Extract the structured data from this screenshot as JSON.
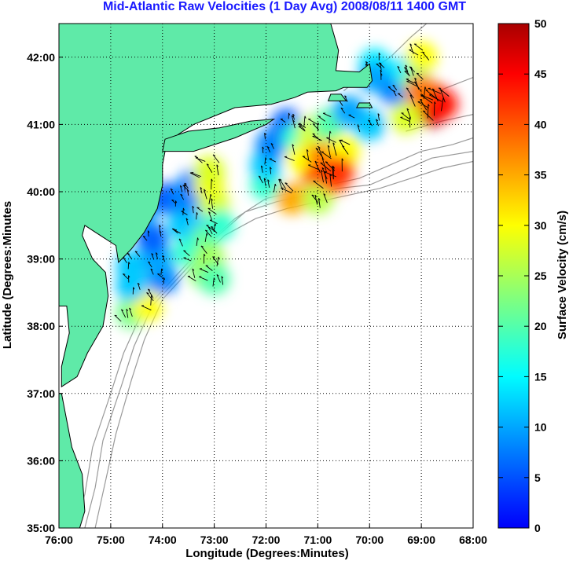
{
  "chart_data": {
    "type": "heatmap",
    "title": "Mid-Atlantic Raw Velocities (1 Day Avg) 2008/08/11 1400 GMT",
    "xlabel": "Longitude (Degrees:Minutes)",
    "ylabel": "Latitude (Degrees:Minutes",
    "xlim": [
      -76,
      -68
    ],
    "ylim": [
      35,
      42.5
    ],
    "x_ticks": [
      {
        "value": -76,
        "label": "76:00"
      },
      {
        "value": -75,
        "label": "75:00"
      },
      {
        "value": -74,
        "label": "74:00"
      },
      {
        "value": -73,
        "label": "73:00"
      },
      {
        "value": -72,
        "label": "72:00"
      },
      {
        "value": -71,
        "label": "71:00"
      },
      {
        "value": -70,
        "label": "70:00"
      },
      {
        "value": -69,
        "label": "69:00"
      },
      {
        "value": -68,
        "label": "68:00"
      }
    ],
    "y_ticks": [
      {
        "value": 35,
        "label": "35:00"
      },
      {
        "value": 36,
        "label": "36:00"
      },
      {
        "value": 37,
        "label": "37:00"
      },
      {
        "value": 38,
        "label": "38:00"
      },
      {
        "value": 39,
        "label": "39:00"
      },
      {
        "value": 40,
        "label": "40:00"
      },
      {
        "value": 41,
        "label": "41:00"
      },
      {
        "value": 42,
        "label": "42:00"
      }
    ],
    "grid": true,
    "colorbar": {
      "label": "Surface Velocity (cm/s)",
      "range": [
        0,
        50
      ],
      "ticks": [
        "0",
        "5",
        "10",
        "15",
        "20",
        "25",
        "30",
        "35",
        "40",
        "45",
        "50"
      ]
    },
    "colors": {
      "land": "#5feaa8",
      "coast": "#000000",
      "bathymetry": "#9a9a9a",
      "grid": "#000000",
      "title": "#1a1aff"
    },
    "regions": [
      {
        "name": "region-new-jersey-delaware",
        "speed_cm_s": [
          [
            38.2,
            -74.6,
            22
          ],
          [
            38.3,
            -74.3,
            30
          ],
          [
            38.6,
            -74.6,
            12
          ],
          [
            38.7,
            -74.0,
            8
          ],
          [
            38.9,
            -74.6,
            12
          ],
          [
            39.0,
            -74.1,
            10
          ],
          [
            39.3,
            -74.2,
            6
          ],
          [
            39.7,
            -74.4,
            10
          ],
          [
            39.9,
            -73.9,
            5
          ],
          [
            39.5,
            -73.6,
            12
          ],
          [
            39.1,
            -73.5,
            18
          ],
          [
            38.8,
            -73.2,
            24
          ],
          [
            39.0,
            -73.1,
            25
          ],
          [
            39.4,
            -73.1,
            22
          ],
          [
            39.7,
            -73.4,
            12
          ],
          [
            39.9,
            -73.6,
            8
          ],
          [
            40.1,
            -73.4,
            8
          ],
          [
            40.1,
            -73.1,
            30
          ],
          [
            39.8,
            -73.0,
            28
          ],
          [
            39.5,
            -72.9,
            18
          ],
          [
            40.3,
            -73.1,
            28
          ],
          [
            38.7,
            -73.0,
            20
          ]
        ]
      },
      {
        "name": "region-long-island-shelf",
        "speed_cm_s": [
          [
            40.1,
            -72.0,
            18
          ],
          [
            40.4,
            -72.0,
            12
          ],
          [
            40.7,
            -71.9,
            8
          ],
          [
            41.0,
            -71.6,
            6
          ],
          [
            40.8,
            -71.4,
            18
          ],
          [
            40.5,
            -71.3,
            30
          ],
          [
            40.2,
            -71.0,
            40
          ],
          [
            40.4,
            -70.8,
            44
          ],
          [
            40.6,
            -70.9,
            38
          ],
          [
            40.9,
            -71.1,
            28
          ],
          [
            39.9,
            -71.5,
            35
          ],
          [
            39.9,
            -71.0,
            26
          ],
          [
            40.6,
            -70.5,
            30
          ],
          [
            41.0,
            -70.8,
            20
          ],
          [
            40.2,
            -70.7,
            40
          ],
          [
            40.3,
            -70.6,
            42
          ]
        ]
      },
      {
        "name": "region-cape-cod-georges",
        "speed_cm_s": [
          [
            41.9,
            -69.9,
            14
          ],
          [
            41.7,
            -69.9,
            10
          ],
          [
            41.5,
            -69.5,
            8
          ],
          [
            41.8,
            -69.3,
            14
          ],
          [
            42.0,
            -69.0,
            30
          ],
          [
            41.6,
            -69.1,
            22
          ],
          [
            41.3,
            -69.0,
            40
          ],
          [
            41.2,
            -68.8,
            48
          ],
          [
            41.4,
            -68.8,
            46
          ],
          [
            41.1,
            -69.3,
            28
          ],
          [
            41.0,
            -70.0,
            12
          ],
          [
            41.2,
            -70.4,
            10
          ],
          [
            41.5,
            -69.0,
            38
          ],
          [
            41.3,
            -68.6,
            44
          ]
        ]
      }
    ]
  }
}
